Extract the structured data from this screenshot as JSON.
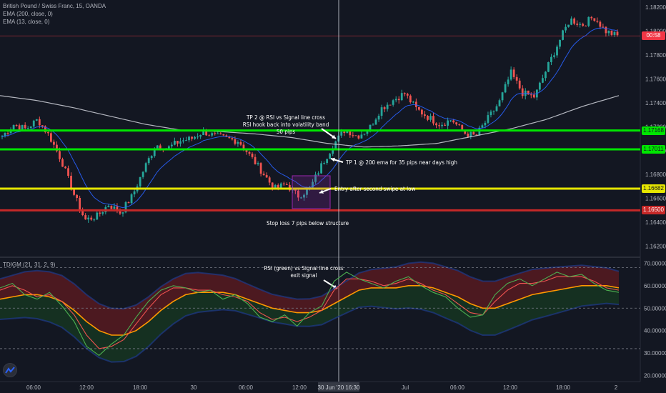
{
  "header": {
    "symbol": "British Pound / Swiss Franc, 15, OANDA",
    "ind1": "EMA (200, close, 0)",
    "ind2": "EMA (13, close, 0)"
  },
  "price_panel": {
    "y_ticks": [
      "1.18200",
      "1.18000",
      "1.17800",
      "1.17600",
      "1.17400",
      "1.17200",
      "1.17000",
      "1.16800",
      "1.16600",
      "1.16400",
      "1.16200"
    ],
    "tags": [
      {
        "label": "00:58",
        "color": "#f23645",
        "price": 1.1796
      },
      {
        "label": "1.17168",
        "color": "#00e600",
        "price": 1.17168
      },
      {
        "label": "1.17011",
        "color": "#00e600",
        "price": 1.17011
      },
      {
        "label": "1.16682",
        "color": "#e6e600",
        "price": 1.16682
      },
      {
        "label": "1.16500",
        "color": "#c62828",
        "price": 1.165
      }
    ]
  },
  "annotations": {
    "tp2": [
      "TP 2 @ RSI vs Signal line cross",
      "RSI hook back into volatility band",
      "50 pips"
    ],
    "tp1": "TP 1 @ 200 ema for 35 pips near days high",
    "entry": "Entry after second swipe at low",
    "stop": "Stop loss 7 pips below structure",
    "exit": [
      "RSI (green) vs Signal line cross",
      "exit signal"
    ]
  },
  "indicator_panel": {
    "title": "TDIGM (21, 31, 2, 9)",
    "y_ticks": [
      "70.00000",
      "60.00000",
      "50.00000",
      "40.00000",
      "30.00000",
      "20.00000"
    ]
  },
  "time_axis": {
    "labels": [
      "06:00",
      "12:00",
      "18:00",
      "30",
      "06:00",
      "12:00",
      "Jul",
      "06:00",
      "12:00",
      "18:00",
      "2"
    ],
    "crosshair_label": "30 Jun '20   16:30"
  },
  "colors": {
    "background": "#131722",
    "up": "#26a69a",
    "down": "#ef5350",
    "ema200": "#d1d4dc",
    "ema13": "#2962ff",
    "tp_line": "#00e600",
    "entry_line": "#e6e600",
    "stop_line": "#c62828",
    "rsi": "#4caf50",
    "signal": "#ef5350",
    "midband": "#ff9800"
  },
  "chart_data": [
    {
      "type": "candlestick",
      "title": "British Pound / Swiss Franc, 15, OANDA",
      "ylim": [
        1.1612,
        1.1826
      ],
      "ema200": [
        1.1746,
        1.1742,
        1.1736,
        1.1729,
        1.1722,
        1.1717,
        1.1716,
        1.1714,
        1.1711,
        1.1706,
        1.1703,
        1.1704,
        1.1706,
        1.1712,
        1.1718,
        1.1726,
        1.1737,
        1.1746
      ],
      "levels": [
        {
          "name": "TP 2",
          "value": 1.17168
        },
        {
          "name": "TP 1",
          "value": 1.17011
        },
        {
          "name": "Entry",
          "value": 1.16682
        },
        {
          "name": "Stop loss",
          "value": 1.165
        }
      ],
      "close_path": [
        1.1712,
        1.1722,
        1.1718,
        1.1726,
        1.1712,
        1.1692,
        1.1665,
        1.1642,
        1.1645,
        1.1655,
        1.1648,
        1.1662,
        1.1685,
        1.1705,
        1.1702,
        1.1708,
        1.171,
        1.1716,
        1.1712,
        1.171,
        1.1708,
        1.1695,
        1.1682,
        1.1668,
        1.1672,
        1.1662,
        1.1668,
        1.1688,
        1.1705,
        1.1718,
        1.1712,
        1.1718,
        1.1735,
        1.1742,
        1.1748,
        1.1735,
        1.1728,
        1.1722,
        1.1726,
        1.1715,
        1.1712,
        1.1726,
        1.174,
        1.1765,
        1.1748,
        1.1745,
        1.1768,
        1.179,
        1.181,
        1.1805,
        1.1812,
        1.18,
        1.1796
      ]
    },
    {
      "type": "line",
      "title": "TDIGM (21, 31, 2, 9)",
      "ylim": [
        18,
        72
      ],
      "series": [
        {
          "name": "RSI (green)",
          "values": [
            59,
            61,
            56,
            54,
            57,
            51,
            44,
            33,
            29,
            34,
            38,
            46,
            53,
            58,
            60,
            59,
            57,
            58,
            54,
            56,
            52,
            46,
            44,
            47,
            42,
            48,
            51,
            62,
            66,
            63,
            61,
            59,
            62,
            64,
            60,
            57,
            55,
            50,
            46,
            47,
            56,
            61,
            63,
            60,
            63,
            66,
            64,
            65,
            61,
            58,
            57
          ]
        },
        {
          "name": "Signal line",
          "values": [
            58,
            60,
            58,
            55,
            56,
            53,
            47,
            38,
            32,
            33,
            36,
            43,
            50,
            56,
            59,
            59,
            58,
            58,
            56,
            55,
            53,
            48,
            45,
            46,
            44,
            46,
            49,
            58,
            63,
            63,
            62,
            60,
            61,
            63,
            61,
            58,
            56,
            52,
            48,
            47,
            53,
            58,
            61,
            61,
            62,
            64,
            64,
            64,
            62,
            59,
            58
          ]
        },
        {
          "name": "Middle band",
          "values": [
            54,
            55,
            56,
            56,
            55,
            53,
            49,
            44,
            40,
            38,
            38,
            40,
            44,
            49,
            53,
            56,
            57,
            57,
            57,
            56,
            54,
            52,
            50,
            49,
            48,
            48,
            49,
            52,
            55,
            58,
            59,
            59,
            59,
            60,
            60,
            59,
            57,
            55,
            52,
            50,
            50,
            52,
            54,
            56,
            57,
            58,
            59,
            60,
            60,
            60,
            59
          ]
        }
      ],
      "reference_lines": [
        68,
        50,
        32
      ]
    }
  ]
}
